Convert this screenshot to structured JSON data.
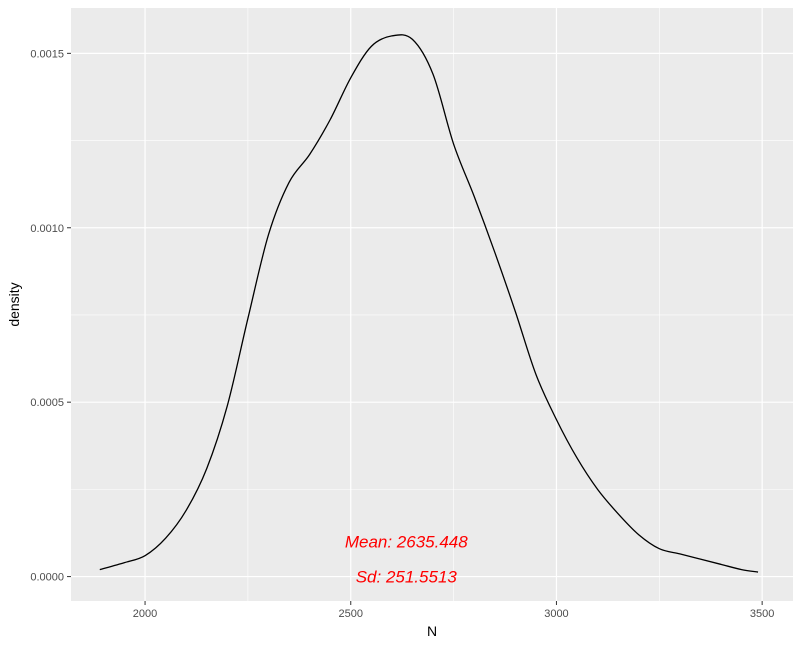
{
  "chart_data": {
    "type": "line",
    "title": "",
    "xlabel": "N",
    "ylabel": "density",
    "xlim": [
      1820,
      3575
    ],
    "ylim": [
      -7e-05,
      0.00163
    ],
    "x_ticks": [
      2000,
      2500,
      3000,
      3500
    ],
    "x_tick_labels": [
      "2000",
      "2500",
      "3000",
      "3500"
    ],
    "y_ticks": [
      0.0,
      0.0005,
      0.001,
      0.0015
    ],
    "y_tick_labels": [
      "0.0000",
      "0.0005",
      "0.0010",
      "0.0015"
    ],
    "grid": true,
    "panel_background": "#ebebeb",
    "grid_color": "#ffffff",
    "line_color": "#000000",
    "series": [
      {
        "x": [
          1890,
          1950,
          2000,
          2050,
          2100,
          2150,
          2200,
          2250,
          2300,
          2350,
          2400,
          2450,
          2500,
          2550,
          2600,
          2650,
          2700,
          2750,
          2800,
          2850,
          2900,
          2950,
          3000,
          3050,
          3100,
          3150,
          3200,
          3250,
          3300,
          3350,
          3400,
          3450,
          3490
        ],
        "y": [
          2e-05,
          4e-05,
          6e-05,
          0.00011,
          0.00019,
          0.00031,
          0.00049,
          0.00074,
          0.00098,
          0.00113,
          0.00121,
          0.00131,
          0.00143,
          0.00152,
          0.00155,
          0.00154,
          0.00144,
          0.00124,
          0.00109,
          0.00093,
          0.00076,
          0.00058,
          0.00045,
          0.00034,
          0.00025,
          0.00018,
          0.00012,
          8e-05,
          6.5e-05,
          5e-05,
          3.5e-05,
          2e-05,
          1.3e-05
        ]
      }
    ],
    "annotations": [
      {
        "text": "Mean: 2635.448",
        "x": 2635,
        "y": 0.0001,
        "color": "#ff0000"
      },
      {
        "text": "Sd: 251.5513",
        "x": 2635,
        "y": 0.0,
        "color": "#ff0000"
      }
    ]
  }
}
